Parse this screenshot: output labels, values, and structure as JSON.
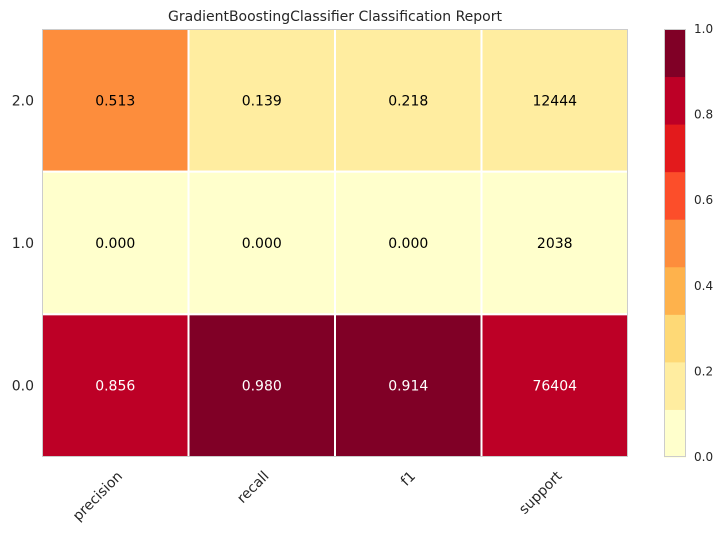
{
  "chart_data": {
    "type": "heatmap",
    "title": "GradientBoostingClassifier Classification Report",
    "xlabel": "",
    "ylabel": "",
    "columns": [
      "precision",
      "recall",
      "f1",
      "support"
    ],
    "rows": [
      "2.0",
      "1.0",
      "0.0"
    ],
    "cells": [
      [
        "0.513",
        "0.139",
        "0.218",
        "12444"
      ],
      [
        "0.000",
        "0.000",
        "0.000",
        "2038"
      ],
      [
        "0.856",
        "0.980",
        "0.914",
        "76404"
      ]
    ],
    "color_values": [
      [
        0.513,
        0.139,
        0.218,
        0.136
      ],
      [
        0.0,
        0.0,
        0.0,
        0.022
      ],
      [
        0.856,
        0.98,
        0.914,
        0.835
      ]
    ],
    "colorbar": {
      "range": [
        0.0,
        1.0
      ],
      "ticks": [
        "0.0",
        "0.2",
        "0.4",
        "0.6",
        "0.8",
        "1.0"
      ],
      "colors": [
        "#ffffcc",
        "#ffeda0",
        "#fed976",
        "#feb24c",
        "#fd8d3c",
        "#fc4e2a",
        "#e31a1c",
        "#bd0026",
        "#800026"
      ]
    },
    "grid": false,
    "legend": "colorbar right"
  }
}
